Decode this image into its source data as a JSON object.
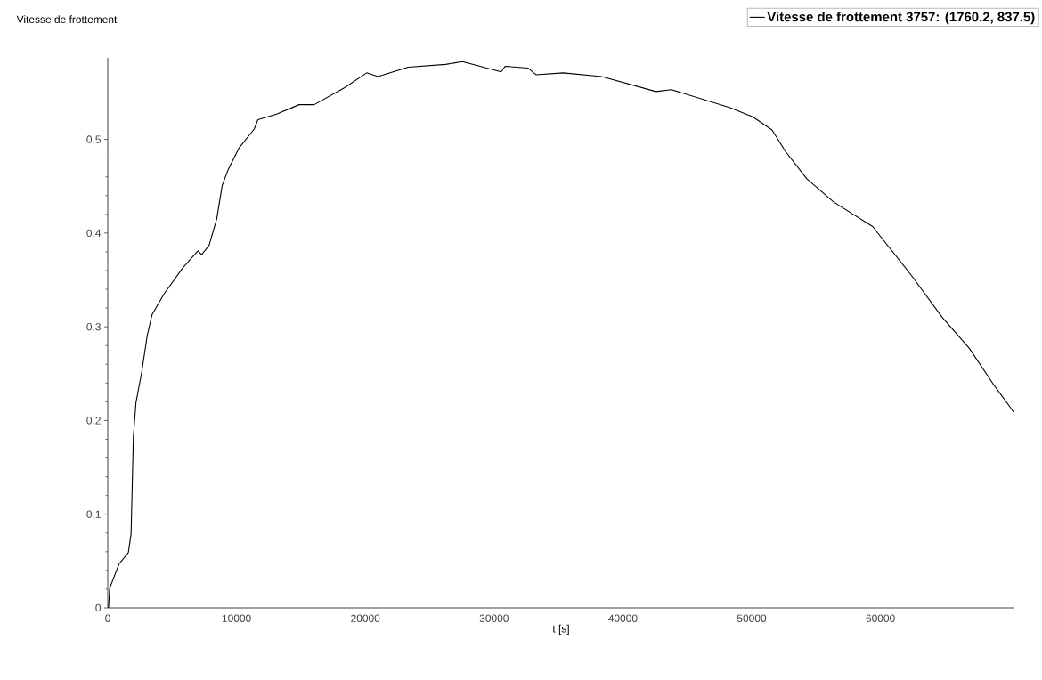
{
  "chart_data": {
    "type": "line",
    "xlabel": "t [s]",
    "ylabel": "Vitesse de frottement",
    "xlim": [
      0,
      70400
    ],
    "ylim": [
      0,
      0.587
    ],
    "xticks": [
      0,
      10000,
      20000,
      30000,
      40000,
      50000,
      60000
    ],
    "yticks": [
      0,
      0.1,
      0.2,
      0.3,
      0.4,
      0.5
    ],
    "grid": false,
    "legend": "top right",
    "marker": "none",
    "line_style": "solid",
    "series": [
      {
        "name": "**Vitesse de frottement 3757: (1760.2, 837.5)**",
        "color": "#000000",
        "x": [
          60,
          150,
          880,
          1600,
          1810,
          1990,
          2190,
          2630,
          3070,
          3440,
          4370,
          5830,
          7000,
          7290,
          7870,
          8460,
          8890,
          9330,
          10200,
          11370,
          11660,
          13110,
          14860,
          16030,
          18360,
          20110,
          20980,
          23320,
          26230,
          27540,
          30550,
          30850,
          32650,
          33250,
          35360,
          38360,
          42570,
          43770,
          48270,
          50080,
          51580,
          52630,
          54280,
          56380,
          59390,
          62390,
          64800,
          66900,
          68700,
          70350
        ],
        "values": [
          0.0,
          0.021,
          0.047,
          0.059,
          0.079,
          0.183,
          0.219,
          0.251,
          0.291,
          0.313,
          0.335,
          0.363,
          0.381,
          0.377,
          0.387,
          0.415,
          0.451,
          0.467,
          0.491,
          0.511,
          0.521,
          0.527,
          0.537,
          0.537,
          0.555,
          0.571,
          0.567,
          0.577,
          0.58,
          0.583,
          0.572,
          0.578,
          0.576,
          0.569,
          0.571,
          0.567,
          0.551,
          0.553,
          0.534,
          0.524,
          0.51,
          0.487,
          0.458,
          0.433,
          0.407,
          0.355,
          0.31,
          0.277,
          0.24,
          0.209
        ]
      }
    ]
  }
}
